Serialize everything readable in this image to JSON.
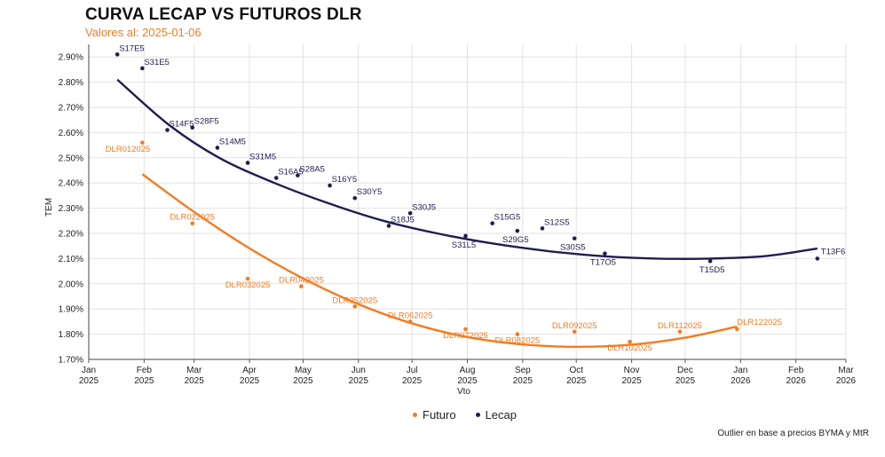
{
  "chart_data": {
    "type": "scatter",
    "title": "CURVA LECAP VS FUTUROS DLR",
    "subtitle": "Valores al: 2025-01-06",
    "xlabel": "Vto",
    "ylabel": "TEM",
    "ylim": [
      0.017,
      0.0295
    ],
    "xlim": [
      "2025-01-01",
      "2026-03-01"
    ],
    "x_ticks": [
      {
        "date": "2025-01-01",
        "label1": "Jan",
        "label2": "2025"
      },
      {
        "date": "2025-02-01",
        "label1": "Feb",
        "label2": "2025"
      },
      {
        "date": "2025-03-01",
        "label1": "Mar",
        "label2": "2025"
      },
      {
        "date": "2025-04-01",
        "label1": "Apr",
        "label2": "2025"
      },
      {
        "date": "2025-05-01",
        "label1": "May",
        "label2": "2025"
      },
      {
        "date": "2025-06-01",
        "label1": "Jun",
        "label2": "2025"
      },
      {
        "date": "2025-07-01",
        "label1": "Jul",
        "label2": "2025"
      },
      {
        "date": "2025-08-01",
        "label1": "Aug",
        "label2": "2025"
      },
      {
        "date": "2025-09-01",
        "label1": "Sep",
        "label2": "2025"
      },
      {
        "date": "2025-10-01",
        "label1": "Oct",
        "label2": "2025"
      },
      {
        "date": "2025-11-01",
        "label1": "Nov",
        "label2": "2025"
      },
      {
        "date": "2025-12-01",
        "label1": "Dec",
        "label2": "2025"
      },
      {
        "date": "2026-01-01",
        "label1": "Jan",
        "label2": "2026"
      },
      {
        "date": "2026-02-01",
        "label1": "Feb",
        "label2": "2026"
      },
      {
        "date": "2026-03-01",
        "label1": "Mar",
        "label2": "2026"
      }
    ],
    "y_ticks": [
      {
        "value": 0.017,
        "label": "1.70%"
      },
      {
        "value": 0.018,
        "label": "1.80%"
      },
      {
        "value": 0.019,
        "label": "1.90%"
      },
      {
        "value": 0.02,
        "label": "2.00%"
      },
      {
        "value": 0.021,
        "label": "2.10%"
      },
      {
        "value": 0.022,
        "label": "2.20%"
      },
      {
        "value": 0.023,
        "label": "2.30%"
      },
      {
        "value": 0.024,
        "label": "2.40%"
      },
      {
        "value": 0.025,
        "label": "2.50%"
      },
      {
        "value": 0.026,
        "label": "2.60%"
      },
      {
        "value": 0.027,
        "label": "2.70%"
      },
      {
        "value": 0.028,
        "label": "2.80%"
      },
      {
        "value": 0.029,
        "label": "2.90%"
      }
    ],
    "grid": true,
    "legend_position": "bottom-center",
    "series": [
      {
        "name": "Lecap",
        "color": "#1f1d4f",
        "points": [
          {
            "label": "S17E5",
            "x": "2025-01-17",
            "y": 0.0291
          },
          {
            "label": "S31E5",
            "x": "2025-01-31",
            "y": 0.02855
          },
          {
            "label": "S14F5",
            "x": "2025-02-14",
            "y": 0.0261
          },
          {
            "label": "S28F5",
            "x": "2025-02-28",
            "y": 0.0262
          },
          {
            "label": "S14M5",
            "x": "2025-03-14",
            "y": 0.0254
          },
          {
            "label": "S31M5",
            "x": "2025-03-31",
            "y": 0.0248
          },
          {
            "label": "S16A5",
            "x": "2025-04-16",
            "y": 0.0242
          },
          {
            "label": "S28A5",
            "x": "2025-04-28",
            "y": 0.0243
          },
          {
            "label": "S16Y5",
            "x": "2025-05-16",
            "y": 0.0239
          },
          {
            "label": "S30Y5",
            "x": "2025-05-30",
            "y": 0.0234
          },
          {
            "label": "S18J5",
            "x": "2025-06-18",
            "y": 0.0223
          },
          {
            "label": "S30J5",
            "x": "2025-06-30",
            "y": 0.0228
          },
          {
            "label": "S31L5",
            "x": "2025-07-31",
            "y": 0.0219
          },
          {
            "label": "S15G5",
            "x": "2025-08-15",
            "y": 0.0224
          },
          {
            "label": "S29G5",
            "x": "2025-08-29",
            "y": 0.0221
          },
          {
            "label": "S12S5",
            "x": "2025-09-12",
            "y": 0.0222
          },
          {
            "label": "S30S5",
            "x": "2025-09-30",
            "y": 0.0218
          },
          {
            "label": "T17O5",
            "x": "2025-10-17",
            "y": 0.0212
          },
          {
            "label": "T15D5",
            "x": "2025-12-15",
            "y": 0.0209
          },
          {
            "label": "T13F6",
            "x": "2026-02-13",
            "y": 0.021
          }
        ],
        "trend": [
          {
            "x": "2025-01-17",
            "y": 0.0281
          },
          {
            "x": "2025-02-15",
            "y": 0.0263
          },
          {
            "x": "2025-03-15",
            "y": 0.025
          },
          {
            "x": "2025-04-15",
            "y": 0.024
          },
          {
            "x": "2025-05-15",
            "y": 0.0232
          },
          {
            "x": "2025-06-15",
            "y": 0.0225
          },
          {
            "x": "2025-07-15",
            "y": 0.022
          },
          {
            "x": "2025-08-15",
            "y": 0.0216
          },
          {
            "x": "2025-09-15",
            "y": 0.0213
          },
          {
            "x": "2025-10-15",
            "y": 0.0211
          },
          {
            "x": "2025-11-15",
            "y": 0.021
          },
          {
            "x": "2025-12-15",
            "y": 0.021
          },
          {
            "x": "2026-01-15",
            "y": 0.0211
          },
          {
            "x": "2026-02-13",
            "y": 0.0214
          }
        ]
      },
      {
        "name": "Futuro",
        "color": "#f47b20",
        "points": [
          {
            "label": "DLR012025",
            "x": "2025-01-31",
            "y": 0.0256
          },
          {
            "label": "DLR022025",
            "x": "2025-02-28",
            "y": 0.0224
          },
          {
            "label": "DLR032025",
            "x": "2025-03-31",
            "y": 0.0202
          },
          {
            "label": "DLR042025",
            "x": "2025-04-30",
            "y": 0.0199
          },
          {
            "label": "DLR052025",
            "x": "2025-05-30",
            "y": 0.0191
          },
          {
            "label": "DLR062025",
            "x": "2025-06-30",
            "y": 0.0185
          },
          {
            "label": "DLR072025",
            "x": "2025-07-31",
            "y": 0.0182
          },
          {
            "label": "DLR082025",
            "x": "2025-08-29",
            "y": 0.018
          },
          {
            "label": "DLR092025",
            "x": "2025-09-30",
            "y": 0.0181
          },
          {
            "label": "DLR102025",
            "x": "2025-10-31",
            "y": 0.0177
          },
          {
            "label": "DLR112025",
            "x": "2025-11-28",
            "y": 0.0181
          },
          {
            "label": "DLR122025",
            "x": "2025-12-30",
            "y": 0.0182
          }
        ],
        "trend": [
          {
            "x": "2025-01-31",
            "y": 0.02435
          },
          {
            "x": "2025-02-28",
            "y": 0.0229
          },
          {
            "x": "2025-03-31",
            "y": 0.02145
          },
          {
            "x": "2025-04-30",
            "y": 0.02025
          },
          {
            "x": "2025-05-30",
            "y": 0.01925
          },
          {
            "x": "2025-06-30",
            "y": 0.01845
          },
          {
            "x": "2025-07-31",
            "y": 0.0179
          },
          {
            "x": "2025-08-31",
            "y": 0.0176
          },
          {
            "x": "2025-09-30",
            "y": 0.0175
          },
          {
            "x": "2025-10-31",
            "y": 0.01758
          },
          {
            "x": "2025-11-30",
            "y": 0.01785
          },
          {
            "x": "2025-12-30",
            "y": 0.0183
          }
        ]
      }
    ],
    "note": "Outlier en base a precios BYMA y MtR"
  }
}
